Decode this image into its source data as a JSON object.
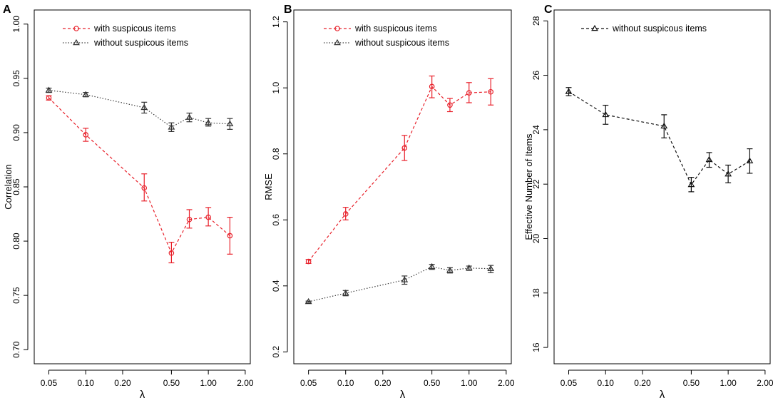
{
  "chart_data": [
    {
      "panel": "A",
      "type": "line",
      "xscale": "log",
      "x_ticks": [
        0.05,
        0.1,
        0.2,
        0.5,
        1.0,
        2.0
      ],
      "x_tick_labels": [
        "0.05",
        "0.10",
        "0.20",
        "0.50",
        "1.00",
        "2.00"
      ],
      "xlim": [
        0.038,
        2.2
      ],
      "ylim": [
        0.687,
        1.013
      ],
      "y_ticks": [
        0.7,
        0.75,
        0.8,
        0.85,
        0.9,
        0.95,
        1.0
      ],
      "y_tick_labels": [
        "0.70",
        "0.75",
        "0.80",
        "0.85",
        "0.90",
        "0.95",
        "1.00"
      ],
      "xlabel": "λ",
      "ylabel": "Correlation",
      "x": [
        0.05,
        0.1,
        0.3,
        0.5,
        0.7,
        1.0,
        1.5
      ],
      "series": [
        {
          "name": "with suspicous items",
          "color": "#e8202a",
          "marker": "circle",
          "linestyle": "dashed",
          "values": [
            0.932,
            0.898,
            0.849,
            0.789,
            0.82,
            0.822,
            0.805
          ],
          "err_low": [
            0.93,
            0.892,
            0.837,
            0.78,
            0.812,
            0.814,
            0.788
          ],
          "err_high": [
            0.934,
            0.904,
            0.862,
            0.799,
            0.829,
            0.831,
            0.822
          ]
        },
        {
          "name": "without suspicous items",
          "color": "#333333",
          "marker": "triangle",
          "linestyle": "dotted",
          "values": [
            0.939,
            0.935,
            0.923,
            0.905,
            0.914,
            0.909,
            0.908
          ],
          "err_low": [
            0.937,
            0.933,
            0.918,
            0.901,
            0.91,
            0.906,
            0.903
          ],
          "err_high": [
            0.941,
            0.937,
            0.928,
            0.909,
            0.918,
            0.913,
            0.913
          ]
        }
      ],
      "legend": [
        "with suspicous items",
        "without suspicous items"
      ],
      "legend_position": "top-left"
    },
    {
      "panel": "B",
      "type": "line",
      "xscale": "log",
      "x_ticks": [
        0.05,
        0.1,
        0.2,
        0.5,
        1.0,
        2.0
      ],
      "x_tick_labels": [
        "0.05",
        "0.10",
        "0.20",
        "0.50",
        "1.00",
        "2.00"
      ],
      "xlim": [
        0.038,
        2.2
      ],
      "ylim": [
        0.164,
        1.236
      ],
      "y_ticks": [
        0.2,
        0.4,
        0.6,
        0.8,
        1.0,
        1.2
      ],
      "y_tick_labels": [
        "0.2",
        "0.4",
        "0.6",
        "0.8",
        "1.0",
        "1.2"
      ],
      "xlabel": "λ",
      "ylabel": "RMSE",
      "x": [
        0.05,
        0.1,
        0.3,
        0.5,
        0.7,
        1.0,
        1.5
      ],
      "series": [
        {
          "name": "with suspicous items",
          "color": "#e8202a",
          "marker": "circle",
          "linestyle": "dashed",
          "values": [
            0.474,
            0.618,
            0.818,
            1.004,
            0.948,
            0.985,
            0.988
          ],
          "err_low": [
            0.468,
            0.6,
            0.78,
            0.97,
            0.928,
            0.955,
            0.948
          ],
          "err_high": [
            0.48,
            0.638,
            0.856,
            1.036,
            0.968,
            1.016,
            1.028
          ]
        },
        {
          "name": "without suspicous items",
          "color": "#333333",
          "marker": "triangle",
          "linestyle": "dotted",
          "values": [
            0.352,
            0.378,
            0.418,
            0.458,
            0.447,
            0.454,
            0.452
          ],
          "err_low": [
            0.35,
            0.37,
            0.405,
            0.45,
            0.439,
            0.447,
            0.44
          ],
          "err_high": [
            0.354,
            0.386,
            0.43,
            0.465,
            0.455,
            0.46,
            0.462
          ]
        }
      ],
      "legend": [
        "with suspicous items",
        "without suspicous items"
      ],
      "legend_position": "top-left"
    },
    {
      "panel": "C",
      "type": "line",
      "xscale": "log",
      "x_ticks": [
        0.05,
        0.1,
        0.2,
        0.5,
        1.0,
        2.0
      ],
      "x_tick_labels": [
        "0.05",
        "0.10",
        "0.20",
        "0.50",
        "1.00",
        "2.00"
      ],
      "xlim": [
        0.038,
        2.2
      ],
      "ylim": [
        15.4,
        28.4
      ],
      "y_ticks": [
        16,
        18,
        20,
        22,
        24,
        26,
        28
      ],
      "y_tick_labels": [
        "16",
        "18",
        "20",
        "22",
        "24",
        "26",
        "28"
      ],
      "xlabel": "λ",
      "ylabel": "Effective Number of Items",
      "x": [
        0.05,
        0.1,
        0.3,
        0.5,
        0.7,
        1.0,
        1.5
      ],
      "series": [
        {
          "name": "without suspicous items",
          "color": "#111111",
          "marker": "triangle",
          "linestyle": "dashed",
          "values": [
            25.4,
            24.55,
            24.13,
            21.98,
            22.9,
            22.37,
            22.85
          ],
          "err_low": [
            25.25,
            24.2,
            23.7,
            21.72,
            22.62,
            22.05,
            22.4
          ],
          "err_high": [
            25.55,
            24.9,
            24.55,
            22.25,
            23.16,
            22.7,
            23.3
          ]
        }
      ],
      "legend": [
        "without suspicous items"
      ],
      "legend_position": "top-left"
    }
  ]
}
